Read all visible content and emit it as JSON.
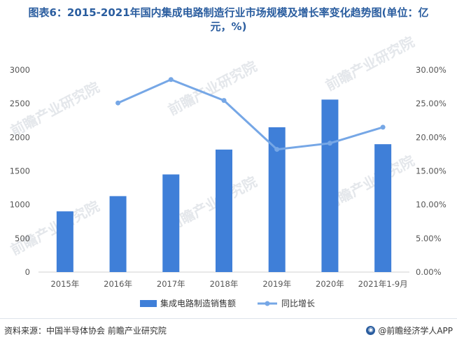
{
  "title_line1": "图表6：2015-2021年国内集成电路制造行业市场规模及增长率变化趋势图(单位：亿",
  "title_line2": "元，%)",
  "watermark": "前瞻产业研究院",
  "footer": {
    "source": "资料来源：中国半导体协会 前瞻产业研究院",
    "brand": "@前瞻经济学人APP"
  },
  "colors": {
    "title": "#2a5d9f",
    "bar": "#3f7fd8",
    "line": "#76a7e6"
  },
  "chart_data": {
    "type": "bar+line",
    "categories": [
      "2015年",
      "2016年",
      "2017年",
      "2018年",
      "2019年",
      "2020年",
      "2021年1-9月"
    ],
    "series": [
      {
        "name": "集成电路制造销售额",
        "type": "bar",
        "axis": "left",
        "values": [
          901,
          1127,
          1449,
          1818,
          2149,
          2560,
          1898
        ]
      },
      {
        "name": "同比增长",
        "type": "line",
        "axis": "right",
        "values": [
          null,
          0.251,
          0.2857,
          0.2547,
          0.1821,
          0.1912,
          0.215
        ]
      }
    ],
    "y_left": {
      "min": 0,
      "max": 3000,
      "ticks": [
        "0",
        "500",
        "1000",
        "1500",
        "2000",
        "2500",
        "3000"
      ]
    },
    "y_right": {
      "min": 0,
      "max": 0.3,
      "ticks": [
        "0.00%",
        "5.00%",
        "10.00%",
        "15.00%",
        "20.00%",
        "25.00%",
        "30.00%"
      ]
    },
    "legend_position": "bottom",
    "grid": false
  }
}
